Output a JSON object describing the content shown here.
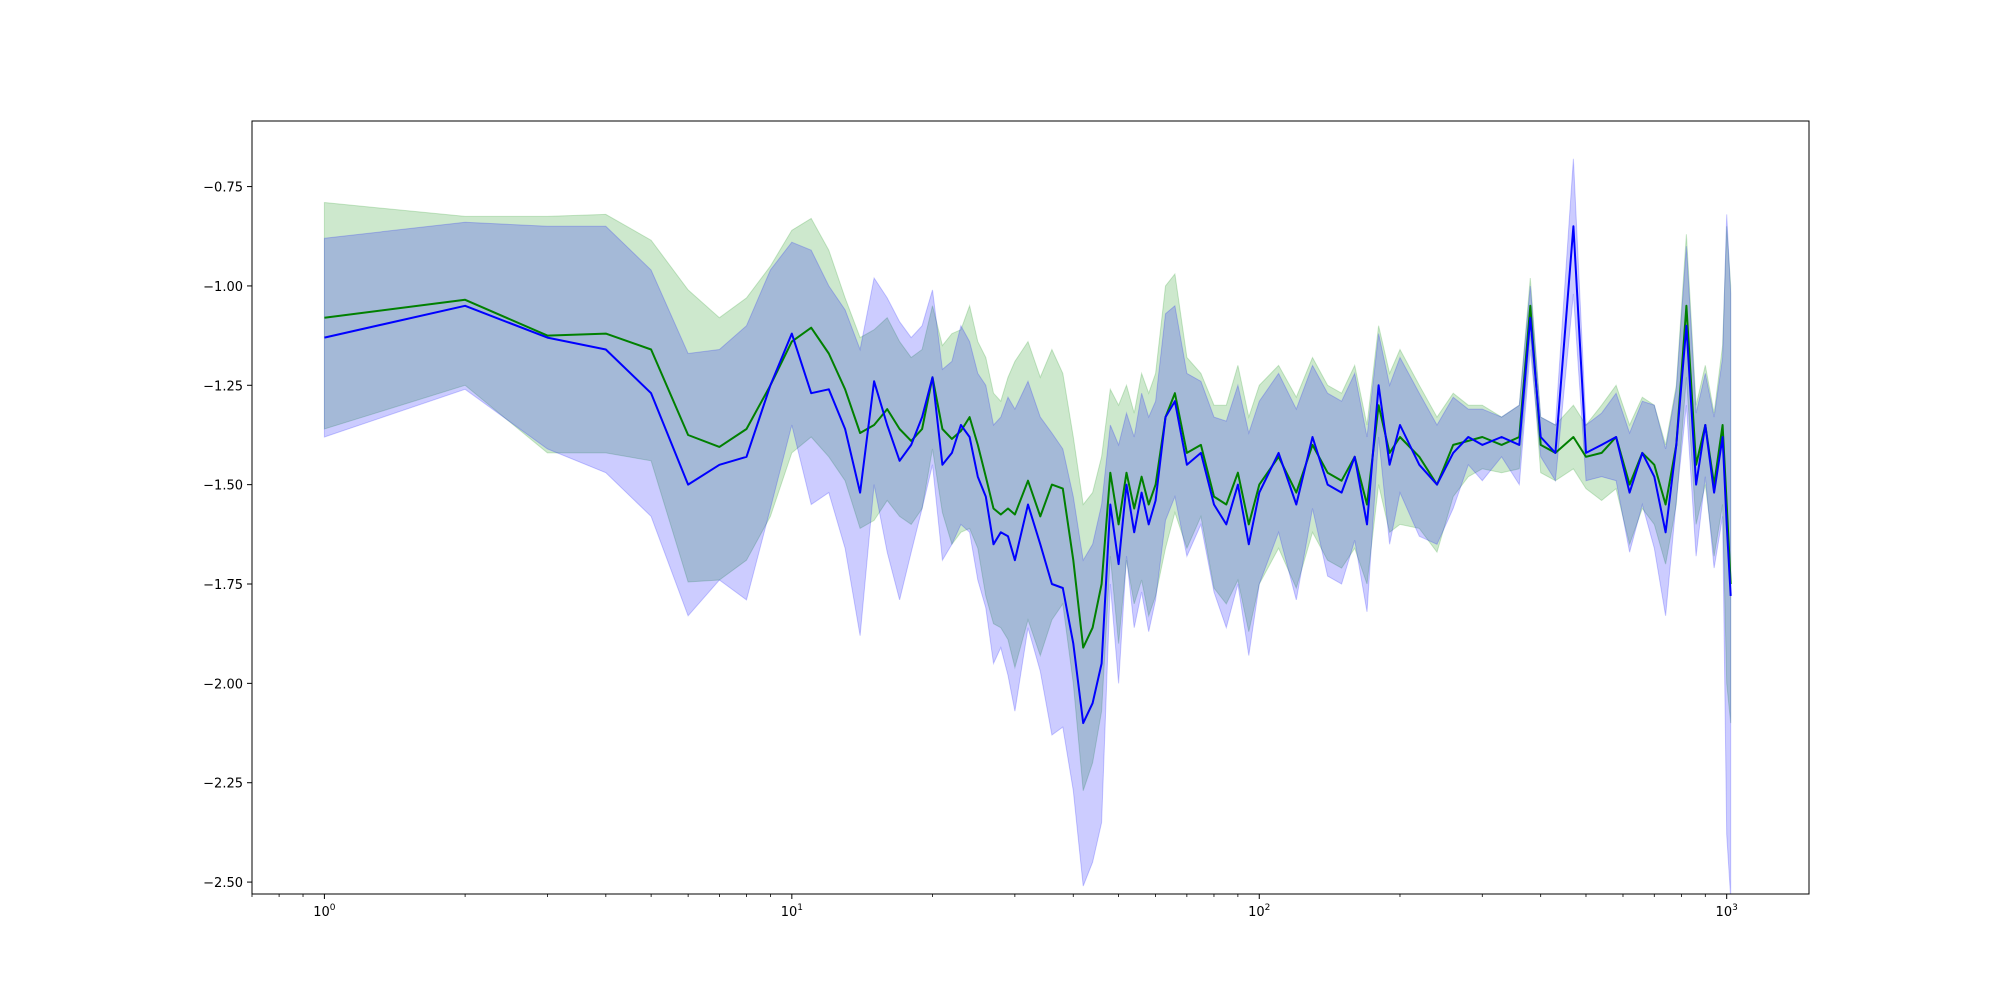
{
  "chart_data": {
    "type": "line",
    "title": "",
    "xlabel": "",
    "ylabel": "",
    "x_scale": "log",
    "xlim": [
      0.7,
      1500
    ],
    "ylim": [
      -2.53,
      -0.585
    ],
    "grid": false,
    "legend": "none",
    "x_ticks": [
      {
        "value": 1,
        "base": "10",
        "exp": "0"
      },
      {
        "value": 10,
        "base": "10",
        "exp": "1"
      },
      {
        "value": 100,
        "base": "10",
        "exp": "2"
      },
      {
        "value": 1000,
        "base": "10",
        "exp": "3"
      }
    ],
    "y_ticks": [
      {
        "value": -0.75,
        "label": "−0.75"
      },
      {
        "value": -1.0,
        "label": "−1.00"
      },
      {
        "value": -1.25,
        "label": "−1.25"
      },
      {
        "value": -1.5,
        "label": "−1.50"
      },
      {
        "value": -1.75,
        "label": "−1.75"
      },
      {
        "value": -2.0,
        "label": "−2.00"
      },
      {
        "value": -2.25,
        "label": "−2.25"
      },
      {
        "value": -2.5,
        "label": "−2.50"
      }
    ],
    "series": [
      {
        "color": "#008000",
        "band_color": "#2ca02c",
        "band_opacity": 0.24,
        "x": [
          1,
          2,
          3,
          4,
          5,
          6,
          7,
          8,
          9,
          10,
          11,
          12,
          13,
          14,
          15,
          16,
          17,
          18,
          19,
          20,
          21,
          22,
          23,
          24,
          25,
          26,
          27,
          28,
          29,
          30,
          32,
          34,
          36,
          38,
          40,
          42,
          44,
          46,
          48,
          50,
          52,
          54,
          56,
          58,
          60,
          63,
          66,
          70,
          75,
          80,
          85,
          90,
          95,
          100,
          110,
          120,
          130,
          140,
          150,
          160,
          170,
          180,
          190,
          200,
          220,
          240,
          260,
          280,
          300,
          330,
          360,
          380,
          400,
          430,
          470,
          500,
          540,
          580,
          620,
          660,
          700,
          740,
          780,
          820,
          860,
          900,
          940,
          980,
          1000,
          1020
        ],
        "y": [
          -1.08,
          -1.035,
          -1.125,
          -1.12,
          -1.16,
          -1.375,
          -1.405,
          -1.36,
          -1.25,
          -1.14,
          -1.105,
          -1.17,
          -1.26,
          -1.37,
          -1.35,
          -1.31,
          -1.36,
          -1.39,
          -1.36,
          -1.23,
          -1.36,
          -1.385,
          -1.365,
          -1.33,
          -1.4,
          -1.48,
          -1.56,
          -1.575,
          -1.56,
          -1.575,
          -1.49,
          -1.58,
          -1.5,
          -1.51,
          -1.69,
          -1.91,
          -1.86,
          -1.75,
          -1.47,
          -1.6,
          -1.47,
          -1.56,
          -1.48,
          -1.55,
          -1.5,
          -1.33,
          -1.27,
          -1.42,
          -1.4,
          -1.53,
          -1.55,
          -1.47,
          -1.6,
          -1.5,
          -1.43,
          -1.52,
          -1.4,
          -1.47,
          -1.49,
          -1.43,
          -1.55,
          -1.3,
          -1.42,
          -1.38,
          -1.43,
          -1.5,
          -1.4,
          -1.39,
          -1.38,
          -1.4,
          -1.38,
          -1.05,
          -1.4,
          -1.42,
          -1.38,
          -1.43,
          -1.42,
          -1.38,
          -1.5,
          -1.42,
          -1.45,
          -1.55,
          -1.4,
          -1.05,
          -1.45,
          -1.35,
          -1.5,
          -1.35,
          -1.55,
          -1.75
        ],
        "upper": [
          -0.79,
          -0.825,
          -0.825,
          -0.82,
          -0.885,
          -1.01,
          -1.08,
          -1.03,
          -0.95,
          -0.86,
          -0.83,
          -0.91,
          -1.03,
          -1.13,
          -1.11,
          -1.08,
          -1.14,
          -1.18,
          -1.16,
          -1.05,
          -1.15,
          -1.12,
          -1.11,
          -1.05,
          -1.14,
          -1.18,
          -1.27,
          -1.29,
          -1.23,
          -1.19,
          -1.14,
          -1.23,
          -1.16,
          -1.22,
          -1.38,
          -1.55,
          -1.52,
          -1.43,
          -1.26,
          -1.3,
          -1.25,
          -1.32,
          -1.22,
          -1.27,
          -1.22,
          -1.0,
          -0.97,
          -1.18,
          -1.22,
          -1.3,
          -1.3,
          -1.2,
          -1.33,
          -1.25,
          -1.2,
          -1.28,
          -1.18,
          -1.25,
          -1.27,
          -1.2,
          -1.35,
          -1.1,
          -1.22,
          -1.16,
          -1.25,
          -1.33,
          -1.27,
          -1.3,
          -1.3,
          -1.33,
          -1.3,
          -0.98,
          -1.33,
          -1.35,
          -1.3,
          -1.35,
          -1.3,
          -1.25,
          -1.35,
          -1.28,
          -1.3,
          -1.4,
          -1.25,
          -0.87,
          -1.3,
          -1.2,
          -1.32,
          -1.15,
          -0.85,
          -1.0
        ],
        "lower": [
          -1.36,
          -1.25,
          -1.42,
          -1.42,
          -1.44,
          -1.745,
          -1.74,
          -1.69,
          -1.58,
          -1.42,
          -1.38,
          -1.43,
          -1.49,
          -1.61,
          -1.59,
          -1.54,
          -1.58,
          -1.6,
          -1.56,
          -1.41,
          -1.57,
          -1.65,
          -1.62,
          -1.61,
          -1.66,
          -1.78,
          -1.85,
          -1.86,
          -1.89,
          -1.96,
          -1.84,
          -1.93,
          -1.84,
          -1.8,
          -2.0,
          -2.27,
          -2.2,
          -2.07,
          -1.68,
          -1.9,
          -1.69,
          -1.8,
          -1.74,
          -1.83,
          -1.78,
          -1.66,
          -1.57,
          -1.66,
          -1.58,
          -1.76,
          -1.8,
          -1.74,
          -1.87,
          -1.75,
          -1.66,
          -1.76,
          -1.62,
          -1.69,
          -1.71,
          -1.66,
          -1.75,
          -1.5,
          -1.62,
          -1.6,
          -1.61,
          -1.67,
          -1.53,
          -1.48,
          -1.46,
          -1.47,
          -1.46,
          -1.12,
          -1.47,
          -1.49,
          -1.46,
          -1.51,
          -1.54,
          -1.51,
          -1.65,
          -1.56,
          -1.6,
          -1.7,
          -1.55,
          -1.23,
          -1.6,
          -1.5,
          -1.68,
          -1.55,
          -2.0,
          -2.1
        ]
      },
      {
        "color": "#0000ff",
        "band_color": "#0000ff",
        "band_opacity": 0.2,
        "x": [
          1,
          2,
          3,
          4,
          5,
          6,
          7,
          8,
          9,
          10,
          11,
          12,
          13,
          14,
          15,
          16,
          17,
          18,
          19,
          20,
          21,
          22,
          23,
          24,
          25,
          26,
          27,
          28,
          29,
          30,
          32,
          34,
          36,
          38,
          40,
          42,
          44,
          46,
          48,
          50,
          52,
          54,
          56,
          58,
          60,
          63,
          66,
          70,
          75,
          80,
          85,
          90,
          95,
          100,
          110,
          120,
          130,
          140,
          150,
          160,
          170,
          180,
          190,
          200,
          220,
          240,
          260,
          280,
          300,
          330,
          360,
          380,
          400,
          430,
          470,
          500,
          540,
          580,
          620,
          660,
          700,
          740,
          780,
          820,
          860,
          900,
          940,
          980,
          1000,
          1020
        ],
        "y": [
          -1.13,
          -1.05,
          -1.13,
          -1.16,
          -1.27,
          -1.5,
          -1.45,
          -1.43,
          -1.25,
          -1.12,
          -1.27,
          -1.26,
          -1.36,
          -1.52,
          -1.24,
          -1.35,
          -1.44,
          -1.4,
          -1.33,
          -1.23,
          -1.45,
          -1.42,
          -1.35,
          -1.38,
          -1.48,
          -1.53,
          -1.65,
          -1.62,
          -1.63,
          -1.69,
          -1.55,
          -1.65,
          -1.75,
          -1.76,
          -1.9,
          -2.1,
          -2.05,
          -1.95,
          -1.55,
          -1.7,
          -1.5,
          -1.62,
          -1.52,
          -1.6,
          -1.54,
          -1.33,
          -1.29,
          -1.45,
          -1.42,
          -1.55,
          -1.6,
          -1.5,
          -1.65,
          -1.52,
          -1.42,
          -1.55,
          -1.38,
          -1.5,
          -1.52,
          -1.43,
          -1.6,
          -1.25,
          -1.45,
          -1.35,
          -1.45,
          -1.5,
          -1.42,
          -1.38,
          -1.4,
          -1.38,
          -1.4,
          -1.08,
          -1.38,
          -1.42,
          -0.85,
          -1.42,
          -1.4,
          -1.38,
          -1.52,
          -1.42,
          -1.48,
          -1.62,
          -1.4,
          -1.1,
          -1.5,
          -1.35,
          -1.52,
          -1.38,
          -1.6,
          -1.78
        ],
        "upper": [
          -0.88,
          -0.84,
          -0.85,
          -0.85,
          -0.96,
          -1.17,
          -1.16,
          -1.1,
          -0.96,
          -0.89,
          -0.91,
          -1.0,
          -1.06,
          -1.16,
          -0.98,
          -1.03,
          -1.09,
          -1.13,
          -1.1,
          -1.01,
          -1.21,
          -1.19,
          -1.1,
          -1.14,
          -1.22,
          -1.25,
          -1.35,
          -1.33,
          -1.28,
          -1.31,
          -1.24,
          -1.33,
          -1.37,
          -1.41,
          -1.53,
          -1.69,
          -1.65,
          -1.55,
          -1.35,
          -1.4,
          -1.32,
          -1.38,
          -1.27,
          -1.33,
          -1.29,
          -1.07,
          -1.05,
          -1.22,
          -1.24,
          -1.33,
          -1.34,
          -1.25,
          -1.37,
          -1.29,
          -1.22,
          -1.31,
          -1.2,
          -1.27,
          -1.29,
          -1.22,
          -1.38,
          -1.12,
          -1.25,
          -1.18,
          -1.27,
          -1.35,
          -1.28,
          -1.31,
          -1.31,
          -1.33,
          -1.3,
          -1.0,
          -1.33,
          -1.35,
          -0.68,
          -1.35,
          -1.32,
          -1.27,
          -1.37,
          -1.29,
          -1.3,
          -1.41,
          -1.26,
          -0.9,
          -1.32,
          -1.22,
          -1.33,
          -1.18,
          -0.82,
          -1.02
        ],
        "lower": [
          -1.38,
          -1.26,
          -1.41,
          -1.47,
          -1.58,
          -1.83,
          -1.74,
          -1.79,
          -1.56,
          -1.35,
          -1.55,
          -1.52,
          -1.66,
          -1.88,
          -1.5,
          -1.67,
          -1.79,
          -1.67,
          -1.56,
          -1.45,
          -1.69,
          -1.65,
          -1.6,
          -1.62,
          -1.74,
          -1.81,
          -1.95,
          -1.91,
          -1.98,
          -2.07,
          -1.86,
          -1.97,
          -2.13,
          -2.11,
          -2.27,
          -2.51,
          -2.45,
          -2.35,
          -1.75,
          -2.0,
          -1.68,
          -1.86,
          -1.77,
          -1.87,
          -1.79,
          -1.59,
          -1.53,
          -1.68,
          -1.6,
          -1.77,
          -1.86,
          -1.75,
          -1.93,
          -1.75,
          -1.62,
          -1.79,
          -1.56,
          -1.73,
          -1.75,
          -1.64,
          -1.82,
          -1.38,
          -1.65,
          -1.52,
          -1.63,
          -1.65,
          -1.56,
          -1.45,
          -1.49,
          -1.43,
          -1.5,
          -1.16,
          -1.43,
          -1.49,
          -1.02,
          -1.49,
          -1.48,
          -1.49,
          -1.67,
          -1.55,
          -1.66,
          -1.83,
          -1.54,
          -1.3,
          -1.68,
          -1.48,
          -1.71,
          -1.58,
          -2.38,
          -2.54
        ]
      }
    ]
  }
}
